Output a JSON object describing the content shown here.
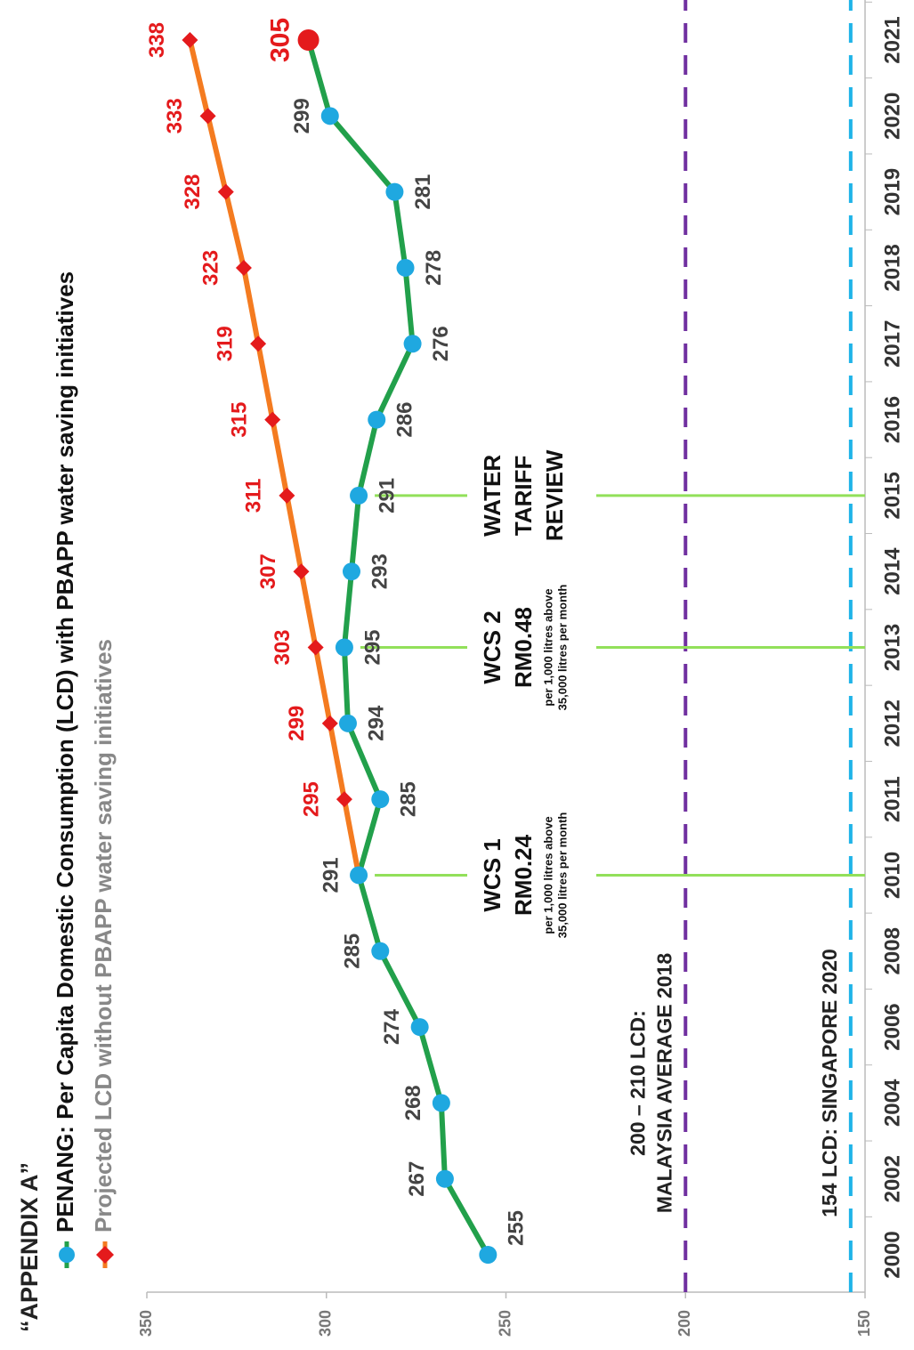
{
  "chart_data": {
    "type": "line",
    "title": "“APPENDIX A”",
    "categories": [
      "2000",
      "2002",
      "2004",
      "2006",
      "2008",
      "2010",
      "2011",
      "2012",
      "2013",
      "2014",
      "2015",
      "2016",
      "2017",
      "2018",
      "2019",
      "2020",
      "2021"
    ],
    "series": [
      {
        "name": "PENANG: Per Capita Domestic Consumption (LCD) with PBAPP water saving initiatives",
        "color": "#22a04b",
        "marker": "circle",
        "marker_color": "#1fa8e0",
        "label_color": "#444444",
        "values": [
          255,
          267,
          268,
          274,
          285,
          291,
          285,
          294,
          295,
          293,
          291,
          286,
          276,
          278,
          281,
          299,
          305
        ]
      },
      {
        "name": "Projected LCD without PBAPP water saving initiatives",
        "color": "#f47b20",
        "marker": "diamond",
        "marker_color": "#e41a1c",
        "label_color": "#e41a1c",
        "values": [
          null,
          null,
          null,
          null,
          null,
          291,
          295,
          299,
          303,
          307,
          311,
          315,
          319,
          323,
          328,
          333,
          338
        ],
        "value_labels": [
          null,
          null,
          null,
          null,
          null,
          null,
          "295",
          "299",
          "303",
          "307",
          "311",
          "315",
          "319",
          "323",
          "328",
          "333",
          "338"
        ]
      }
    ],
    "highlight": {
      "series": 0,
      "index": 16,
      "color": "#e41a1c"
    },
    "ylim": [
      150,
      350
    ],
    "yticks": [
      150,
      200,
      250,
      300,
      350
    ],
    "reference_lines": [
      {
        "value": 200,
        "color": "#7030a0",
        "label": [
          "200 – 210 LCD:",
          "MALAYSIA AVERAGE 2018"
        ]
      },
      {
        "value": 154,
        "color": "#1fb4e8",
        "label": [
          "154 LCD: SINGAPORE 2020"
        ]
      }
    ],
    "events": [
      {
        "category": "2010",
        "color": "#92e05a",
        "lines": [
          "WCS 1",
          "RM0.24"
        ],
        "note": [
          "per 1,000 litres above",
          "35,000 litres per month"
        ]
      },
      {
        "category": "2013",
        "color": "#92e05a",
        "lines": [
          "WCS 2",
          "RM0.48"
        ],
        "note": [
          "per 1,000 litres above",
          "35,000 litres per month"
        ]
      },
      {
        "category": "2015",
        "color": "#92e05a",
        "lines": [
          "WATER",
          "TARIFF",
          "REVIEW"
        ],
        "note": []
      }
    ]
  }
}
